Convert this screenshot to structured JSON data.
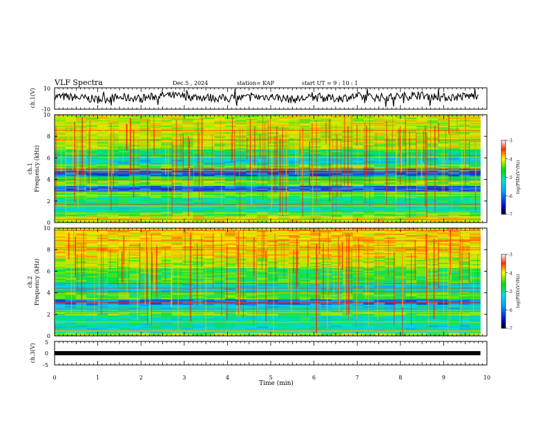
{
  "header": {
    "title": "VLF Spectra",
    "date": "Dec.5  , 2024",
    "station": "station= KAP",
    "start": "start  UT  =   9  : 10 : 1"
  },
  "chart_data": [
    {
      "type": "line",
      "panel": "ch1-waveform",
      "ylabel": "ch.1(V)",
      "ylim": [
        -10,
        10
      ],
      "yticks": [
        "10",
        "-10"
      ],
      "x": [
        0,
        0.5,
        1,
        1.5,
        2,
        2.5,
        3,
        3.5,
        4,
        4.5,
        5,
        5.5,
        6,
        6.5,
        7,
        7.5,
        8,
        8.5,
        9,
        9.5,
        9.8
      ],
      "y": [
        2,
        1,
        -1,
        1,
        0,
        3,
        2,
        1,
        0,
        1,
        2,
        -1,
        1,
        0,
        2,
        1,
        2,
        3,
        1,
        2,
        3
      ]
    },
    {
      "type": "heatmap",
      "panel": "ch1-spectrogram",
      "ylabel_channel": "ch.1",
      "ylabel": "Frequency  (kHz)",
      "ylim": [
        0,
        10
      ],
      "yticks": [
        "0",
        "2",
        "4",
        "6",
        "8",
        "10"
      ],
      "xlim": [
        0,
        9.85
      ],
      "colorbar": {
        "label": "log(PSD)(V²/Hz)",
        "ticks": [
          "-3",
          "-4",
          "-5",
          "-6",
          "-7"
        ],
        "range": [
          -7,
          -3
        ]
      },
      "bands": [
        {
          "f": [
            0.0,
            0.6
          ],
          "level": -4.2
        },
        {
          "f": [
            0.6,
            1.0
          ],
          "level": -4.8
        },
        {
          "f": [
            1.0,
            1.6
          ],
          "level": -5.4
        },
        {
          "f": [
            1.6,
            2.3
          ],
          "level": -5.3
        },
        {
          "f": [
            2.3,
            2.9
          ],
          "level": -4.8
        },
        {
          "f": [
            2.9,
            3.4
          ],
          "level": -6.4
        },
        {
          "f": [
            3.4,
            3.9
          ],
          "level": -4.6
        },
        {
          "f": [
            3.9,
            4.3
          ],
          "level": -5.0
        },
        {
          "f": [
            4.3,
            5.0
          ],
          "level": -6.4
        },
        {
          "f": [
            5.0,
            5.4
          ],
          "level": -4.7
        },
        {
          "f": [
            5.4,
            6.1
          ],
          "level": -5.6
        },
        {
          "f": [
            6.1,
            6.8
          ],
          "level": -5.1
        },
        {
          "f": [
            6.8,
            7.6
          ],
          "level": -4.4
        },
        {
          "f": [
            7.6,
            10.0
          ],
          "level": -4.3
        }
      ]
    },
    {
      "type": "heatmap",
      "panel": "ch2-spectrogram",
      "ylabel_channel": "ch.2",
      "ylabel": "Frequency  (kHz)",
      "ylim": [
        0,
        10
      ],
      "yticks": [
        "0",
        "2",
        "4",
        "6",
        "8",
        "10"
      ],
      "xlim": [
        0,
        9.85
      ],
      "colorbar": {
        "label": "log(PSD)(V²/Hz)",
        "ticks": [
          "-3",
          "-4",
          "-5",
          "-6",
          "-7"
        ],
        "range": [
          -7,
          -3
        ]
      },
      "bands": [
        {
          "f": [
            0.0,
            0.3
          ],
          "level": -4.5
        },
        {
          "f": [
            0.3,
            1.0
          ],
          "level": -5.6
        },
        {
          "f": [
            1.0,
            1.9
          ],
          "level": -5.4
        },
        {
          "f": [
            1.9,
            2.2
          ],
          "level": -4.7
        },
        {
          "f": [
            2.2,
            2.9
          ],
          "level": -5.6
        },
        {
          "f": [
            2.9,
            3.4
          ],
          "level": -6.3
        },
        {
          "f": [
            3.4,
            4.1
          ],
          "level": -4.8
        },
        {
          "f": [
            4.1,
            4.8
          ],
          "level": -5.6
        },
        {
          "f": [
            4.8,
            6.3
          ],
          "level": -4.9
        },
        {
          "f": [
            6.3,
            7.3
          ],
          "level": -4.4
        },
        {
          "f": [
            7.3,
            10.0
          ],
          "level": -4.0
        }
      ]
    },
    {
      "type": "line",
      "panel": "ch3-waveform",
      "ylabel": "ch.3(V)",
      "ylim": [
        -5,
        5
      ],
      "yticks": [
        "5",
        "0",
        "-5"
      ],
      "x": [
        0,
        9.85
      ],
      "y": [
        0,
        0
      ]
    }
  ],
  "x_axis": {
    "label": "Time  (min)",
    "ticks": [
      "0",
      "1",
      "2",
      "3",
      "4",
      "5",
      "6",
      "7",
      "8",
      "9",
      "10"
    ],
    "range": [
      0,
      10
    ]
  }
}
